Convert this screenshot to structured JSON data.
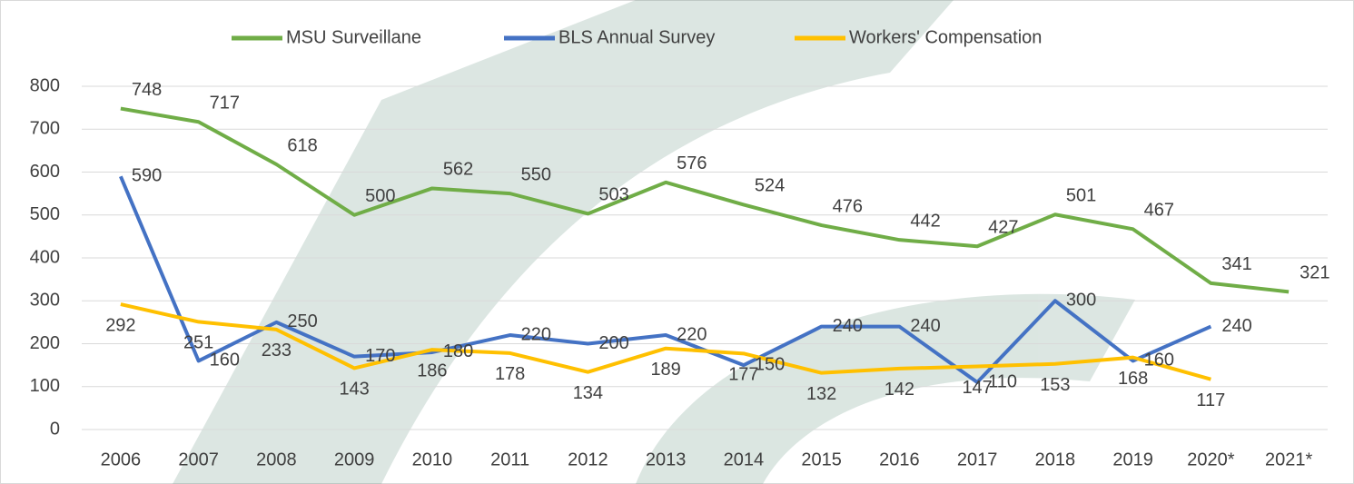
{
  "chart_data": {
    "type": "line",
    "categories": [
      "2006",
      "2007",
      "2008",
      "2009",
      "2010",
      "2011",
      "2012",
      "2013",
      "2014",
      "2015",
      "2016",
      "2017",
      "2018",
      "2019",
      "2020*",
      "2021*"
    ],
    "series": [
      {
        "name": "MSU Surveillane",
        "color": "#70ad47",
        "values": [
          748,
          717,
          618,
          500,
          562,
          550,
          503,
          576,
          524,
          476,
          442,
          427,
          501,
          467,
          341,
          321
        ]
      },
      {
        "name": "BLS Annual Survey",
        "color": "#4472c4",
        "values": [
          590,
          160,
          250,
          170,
          180,
          220,
          200,
          220,
          150,
          240,
          240,
          110,
          300,
          160,
          240,
          null
        ]
      },
      {
        "name": "Workers' Compensation",
        "color": "#ffc000",
        "values": [
          292,
          251,
          233,
          143,
          186,
          178,
          134,
          189,
          177,
          132,
          142,
          147,
          153,
          168,
          117,
          null
        ]
      }
    ],
    "ylim": [
      0,
      800
    ],
    "yticks": [
      0,
      100,
      200,
      300,
      400,
      500,
      600,
      700,
      800
    ],
    "grid": true,
    "legend": "top"
  }
}
